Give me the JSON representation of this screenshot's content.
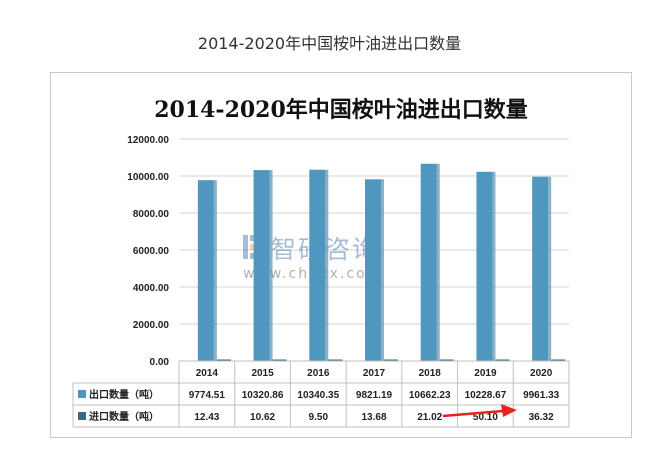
{
  "page_title": "2014-2020年中国桉叶油进出口数量",
  "watermark": {
    "name": "智研咨询",
    "url": "www.chyxx.com"
  },
  "colors": {
    "export": "#4f97bf",
    "import": "#356a86",
    "grid": "#d4d4d4",
    "arrow": "#e8231b"
  },
  "chart_data": {
    "type": "bar",
    "title": "2014-2020年中国桉叶油进出口数量",
    "categories": [
      "2014",
      "2015",
      "2016",
      "2017",
      "2018",
      "2019",
      "2020"
    ],
    "series": [
      {
        "name": "出口数量（吨）",
        "values": [
          9774.51,
          10320.86,
          10340.35,
          9821.19,
          10662.23,
          10228.67,
          9961.33
        ]
      },
      {
        "name": "进口数量（吨）",
        "values": [
          12.43,
          10.62,
          9.5,
          13.68,
          21.02,
          50.1,
          36.32
        ]
      }
    ],
    "table": {
      "rows": [
        [
          "9774.51",
          "10320.86",
          "10340.35",
          "9821.19",
          "10662.23",
          "10228.67",
          "9961.33"
        ],
        [
          "12.43",
          "10.62",
          "9.50",
          "13.68",
          "21.02",
          "50.10",
          "36.32"
        ]
      ]
    },
    "yticks": [
      "0.00",
      "2000.00",
      "4000.00",
      "6000.00",
      "8000.00",
      "10000.00",
      "12000.00"
    ],
    "ylim": [
      0,
      12000
    ],
    "grid": true,
    "legend": "data-table",
    "annotation": "red arrow pointing to 2020 import value"
  }
}
